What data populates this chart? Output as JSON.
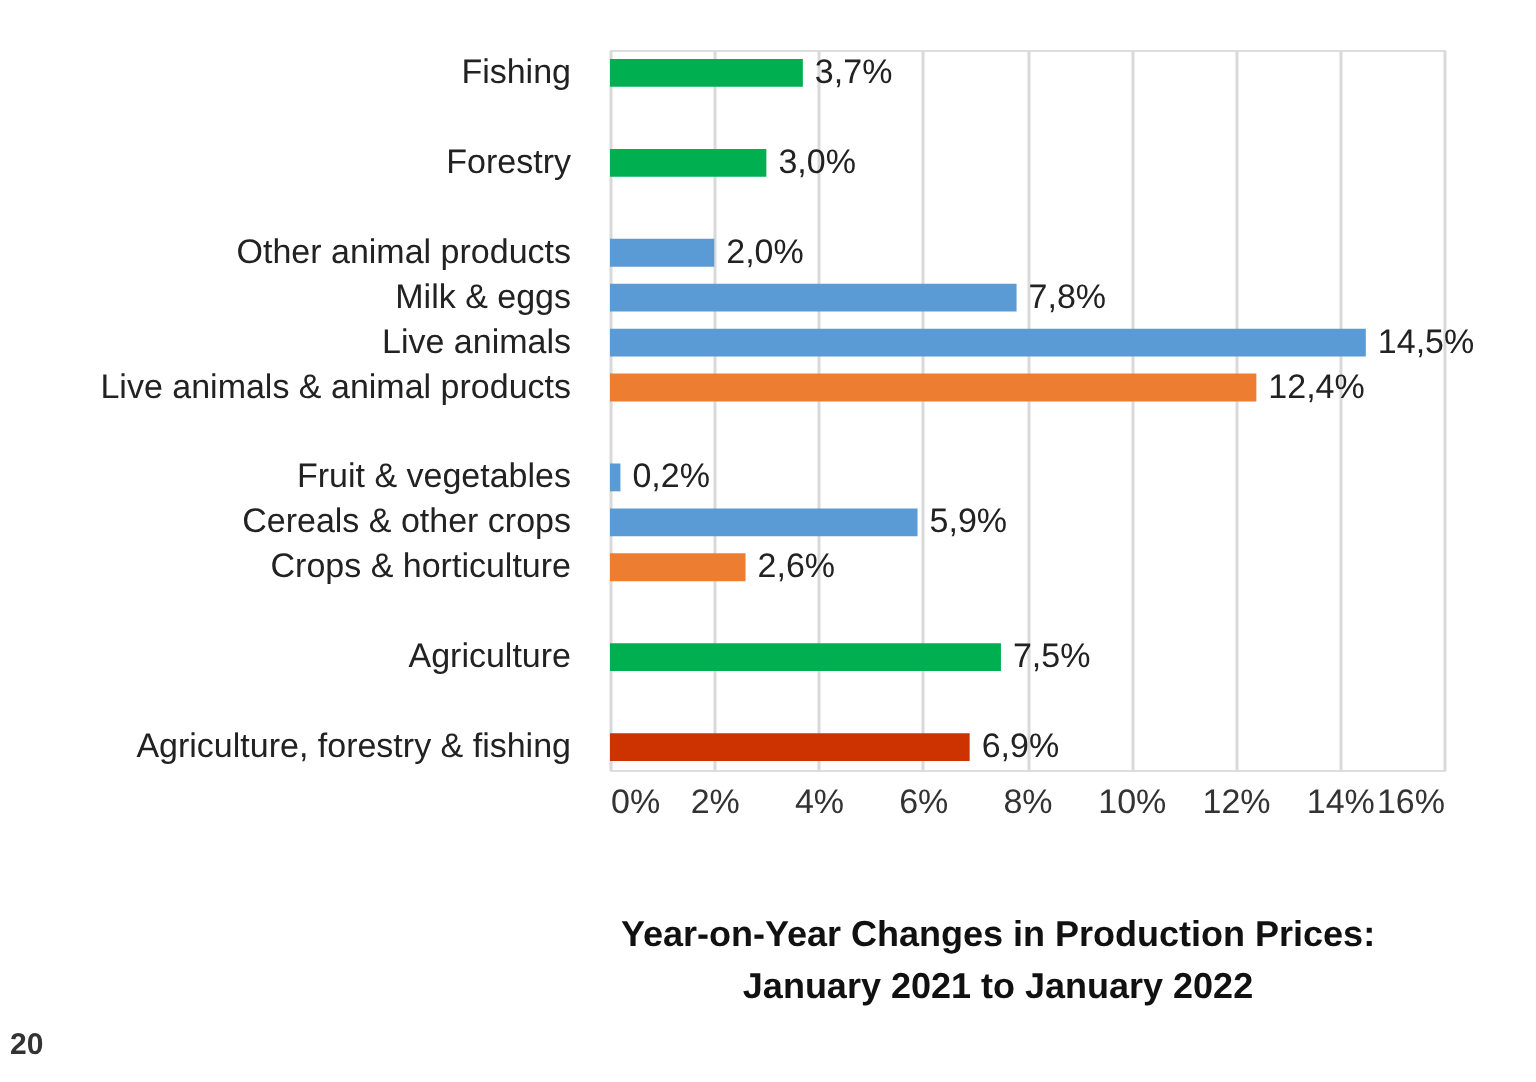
{
  "chart_data": {
    "type": "bar",
    "orientation": "horizontal",
    "title": "Year-on-Year Changes in Production Prices:\nJanuary 2021 to January 2022",
    "categories": [
      "Fishing",
      null,
      "Forestry",
      null,
      "Other animal products",
      "Milk & eggs",
      "Live animals",
      "Live animals & animal products",
      null,
      "Fruit & vegetables",
      "Cereals & other crops",
      "Crops & horticulture",
      null,
      "Agriculture",
      null,
      "Agriculture, forestry & fishing"
    ],
    "values": [
      3.7,
      null,
      3.0,
      null,
      2.0,
      7.8,
      14.5,
      12.4,
      null,
      0.2,
      5.9,
      2.6,
      null,
      7.5,
      null,
      6.9
    ],
    "colors": [
      "#00b050",
      null,
      "#00b050",
      null,
      "#5b9bd5",
      "#5b9bd5",
      "#5b9bd5",
      "#ed7d31",
      null,
      "#5b9bd5",
      "#5b9bd5",
      "#ed7d31",
      null,
      "#00b050",
      null,
      "#cc3300"
    ],
    "value_labels": [
      "3,7%",
      null,
      "3,0%",
      null,
      "2,0%",
      "7,8%",
      "14,5%",
      "12,4%",
      null,
      "0,2%",
      "5,9%",
      "2,6%",
      null,
      "7,5%",
      null,
      "6,9%"
    ],
    "xlim": [
      0,
      16
    ],
    "xticks": [
      {
        "value": 0,
        "label": "0%"
      },
      {
        "value": 2,
        "label": "2%"
      },
      {
        "value": 4,
        "label": "4%"
      },
      {
        "value": 6,
        "label": "6%"
      },
      {
        "value": 8,
        "label": "8%"
      },
      {
        "value": 10,
        "label": "10%"
      },
      {
        "value": 12,
        "label": "12%"
      },
      {
        "value": 14,
        "label": "14%"
      },
      {
        "value": 16,
        "label": "16%"
      }
    ],
    "grid": "x",
    "annotations": [
      "20"
    ]
  }
}
